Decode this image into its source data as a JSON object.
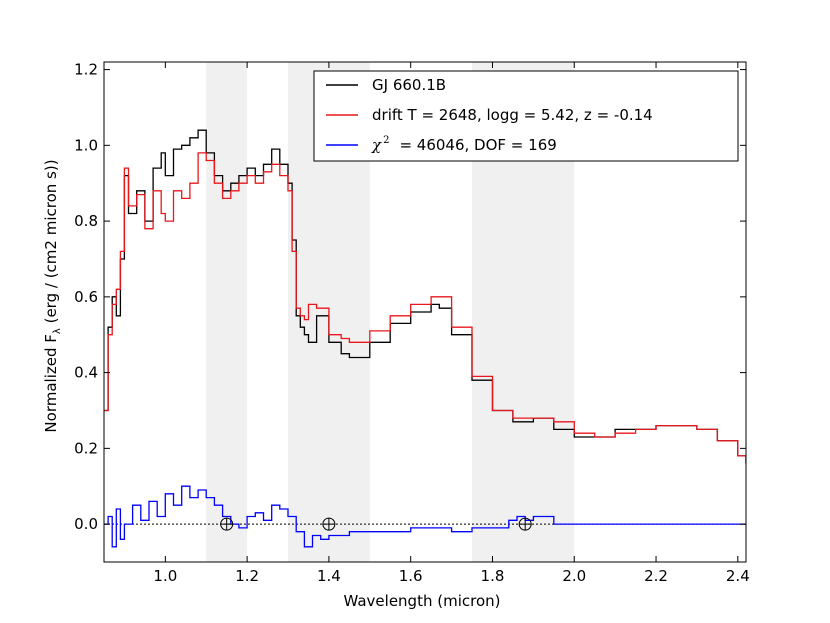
{
  "chart_data": {
    "type": "line",
    "xlabel": "Wavelength (micron)",
    "ylabel": "Normalized F",
    "ylabel_subscript": "λ",
    "ylabel_units": " (erg / (cm2 micron s))",
    "xlim": [
      0.85,
      2.42
    ],
    "ylim": [
      -0.1,
      1.22
    ],
    "x_ticks": [
      1.0,
      1.2,
      1.4,
      1.6,
      1.8,
      2.0,
      2.2,
      2.4
    ],
    "x_tick_labels": [
      "1.0",
      "1.2",
      "1.4",
      "1.6",
      "1.8",
      "2.0",
      "2.2",
      "2.4"
    ],
    "y_ticks": [
      0.0,
      0.2,
      0.4,
      0.6,
      0.8,
      1.0,
      1.2
    ],
    "y_tick_labels": [
      "0.0",
      "0.2",
      "0.4",
      "0.6",
      "0.8",
      "1.0",
      "1.2"
    ],
    "legend_position": "top-right",
    "shaded_bands": [
      [
        1.1,
        1.2
      ],
      [
        1.3,
        1.5
      ],
      [
        1.75,
        2.0
      ]
    ],
    "telluric_markers": [
      1.15,
      1.4,
      1.88
    ],
    "series": [
      {
        "name": "GJ 660.1B",
        "color": "#000000",
        "x": [
          0.85,
          0.86,
          0.87,
          0.88,
          0.89,
          0.9,
          0.91,
          0.93,
          0.95,
          0.97,
          0.99,
          1.0,
          1.02,
          1.04,
          1.06,
          1.08,
          1.1,
          1.12,
          1.14,
          1.16,
          1.18,
          1.2,
          1.22,
          1.24,
          1.26,
          1.28,
          1.3,
          1.31,
          1.32,
          1.33,
          1.34,
          1.35,
          1.37,
          1.4,
          1.43,
          1.45,
          1.5,
          1.55,
          1.6,
          1.65,
          1.67,
          1.7,
          1.75,
          1.8,
          1.85,
          1.9,
          1.95,
          2.0,
          2.05,
          2.1,
          2.15,
          2.2,
          2.25,
          2.3,
          2.35,
          2.4,
          2.42
        ],
        "y": [
          0.3,
          0.52,
          0.6,
          0.55,
          0.7,
          0.92,
          0.82,
          0.88,
          0.8,
          0.94,
          0.98,
          0.92,
          0.99,
          1.0,
          1.02,
          1.04,
          0.98,
          0.92,
          0.88,
          0.9,
          0.92,
          0.94,
          0.92,
          0.95,
          0.99,
          0.95,
          0.9,
          0.75,
          0.55,
          0.52,
          0.5,
          0.48,
          0.55,
          0.48,
          0.45,
          0.44,
          0.48,
          0.53,
          0.56,
          0.58,
          0.57,
          0.5,
          0.38,
          0.3,
          0.27,
          0.28,
          0.25,
          0.23,
          0.23,
          0.25,
          0.25,
          0.26,
          0.26,
          0.25,
          0.22,
          0.18,
          0.16
        ]
      },
      {
        "name": "drift T = 2648, logg =  5.42, z = -0.14",
        "color": "#e8171c",
        "x": [
          0.85,
          0.86,
          0.87,
          0.88,
          0.89,
          0.9,
          0.91,
          0.93,
          0.95,
          0.97,
          0.99,
          1.0,
          1.02,
          1.04,
          1.06,
          1.08,
          1.1,
          1.12,
          1.14,
          1.16,
          1.18,
          1.2,
          1.22,
          1.24,
          1.26,
          1.28,
          1.3,
          1.31,
          1.32,
          1.33,
          1.34,
          1.35,
          1.37,
          1.4,
          1.43,
          1.45,
          1.5,
          1.55,
          1.6,
          1.65,
          1.67,
          1.7,
          1.75,
          1.8,
          1.85,
          1.9,
          1.95,
          2.0,
          2.05,
          2.1,
          2.15,
          2.2,
          2.25,
          2.3,
          2.35,
          2.4,
          2.42
        ],
        "y": [
          0.3,
          0.5,
          0.58,
          0.62,
          0.72,
          0.94,
          0.84,
          0.87,
          0.78,
          0.88,
          0.82,
          0.8,
          0.88,
          0.86,
          0.9,
          0.98,
          0.96,
          0.9,
          0.86,
          0.88,
          0.9,
          0.92,
          0.9,
          0.93,
          0.95,
          0.92,
          0.88,
          0.72,
          0.57,
          0.55,
          0.54,
          0.58,
          0.57,
          0.5,
          0.49,
          0.48,
          0.51,
          0.55,
          0.58,
          0.6,
          0.6,
          0.52,
          0.39,
          0.3,
          0.28,
          0.28,
          0.27,
          0.24,
          0.23,
          0.24,
          0.25,
          0.26,
          0.26,
          0.25,
          0.22,
          0.18,
          0.16
        ]
      },
      {
        "name": "= 46046, DOF = 169",
        "name_prefix": "χ",
        "name_sup": "2",
        "color": "#0000ff",
        "x": [
          0.85,
          0.86,
          0.87,
          0.88,
          0.89,
          0.9,
          0.92,
          0.94,
          0.96,
          0.98,
          1.0,
          1.02,
          1.04,
          1.06,
          1.08,
          1.1,
          1.12,
          1.14,
          1.16,
          1.18,
          1.2,
          1.22,
          1.24,
          1.26,
          1.28,
          1.3,
          1.32,
          1.34,
          1.36,
          1.38,
          1.4,
          1.45,
          1.5,
          1.55,
          1.6,
          1.65,
          1.7,
          1.75,
          1.8,
          1.82,
          1.84,
          1.86,
          1.88,
          1.9,
          1.95,
          2.0,
          2.1,
          2.2,
          2.3,
          2.4,
          2.42
        ],
        "y": [
          0.0,
          0.02,
          -0.06,
          0.04,
          -0.04,
          0.0,
          0.05,
          0.01,
          0.06,
          0.02,
          0.08,
          0.05,
          0.1,
          0.07,
          0.09,
          0.07,
          0.05,
          0.02,
          0.0,
          -0.01,
          0.02,
          0.03,
          0.01,
          0.05,
          0.04,
          0.02,
          -0.02,
          -0.06,
          -0.03,
          -0.04,
          -0.03,
          -0.02,
          -0.02,
          -0.02,
          -0.01,
          -0.01,
          -0.02,
          -0.01,
          -0.01,
          -0.01,
          0.01,
          0.02,
          0.01,
          0.02,
          0.0,
          0.0,
          0.0,
          0.0,
          0.0,
          0.0,
          0.0
        ]
      }
    ]
  }
}
